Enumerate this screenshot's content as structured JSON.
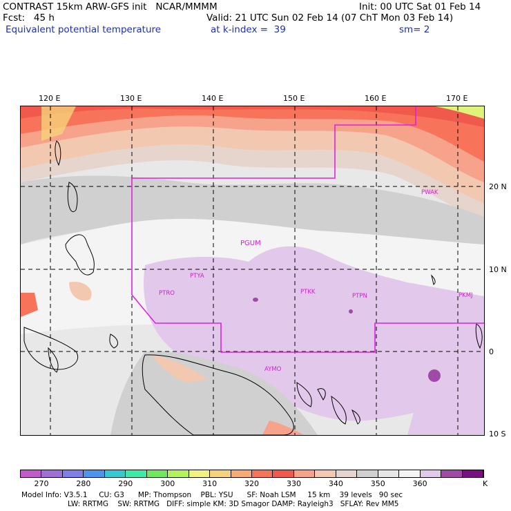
{
  "header": {
    "line1_left": "CONTRAST 15km ARW-GFS init   NCAR/MMMM",
    "line1_right": "Init: 00 UTC Sat 01 Feb 14",
    "line2_left": "Fcst:   45 h",
    "line2_right": "Valid: 21 UTC Sun 02 Feb 14 (07 ChT Mon 03 Feb 14)",
    "line3_left": "Equivalent potential temperature",
    "line3_mid": "at k-index =  39",
    "line3_right": "sm= 2"
  },
  "map": {
    "lon_labels": [
      "120 E",
      "130 E",
      "140 E",
      "150 E",
      "160 E",
      "170 E"
    ],
    "lat_labels": [
      "20 N",
      "10 N",
      "0",
      "10 S"
    ],
    "stations": [
      "PGUM",
      "PTYA",
      "PTRO",
      "PTKK",
      "PTPN",
      "PKMJ",
      "PWAK",
      "AYMO"
    ]
  },
  "colorbar": {
    "unit": "K",
    "tick_labels": [
      "270",
      "280",
      "290",
      "300",
      "310",
      "320",
      "330",
      "340",
      "350",
      "360"
    ],
    "colors": [
      "#c15bc9",
      "#9f6fd6",
      "#7f7fe8",
      "#4d95ea",
      "#37c9d0",
      "#3fe9a7",
      "#6fe85f",
      "#b4f25a",
      "#f2f280",
      "#f6d27b",
      "#f7ab73",
      "#f7745a",
      "#f05a4c",
      "#f7a28a",
      "#f3c8b0",
      "#e6d5cc",
      "#d0d0d0",
      "#e6e6e6",
      "#f4f4f4",
      "#e2c8ea",
      "#a04aa8",
      "#7a0f82"
    ]
  },
  "footer": {
    "line1": "Model Info: V3.5.1     CU: G3      MP: Thompson    PBL: YSU      SF: Noah LSM     15 km    39 levels   90 sec",
    "line2": "LW: RRTMG    SW: RRTMG   DIFF: simple KM: 3D Smagor DAMP: Rayleigh3   SFLAY: Rev MM5"
  }
}
